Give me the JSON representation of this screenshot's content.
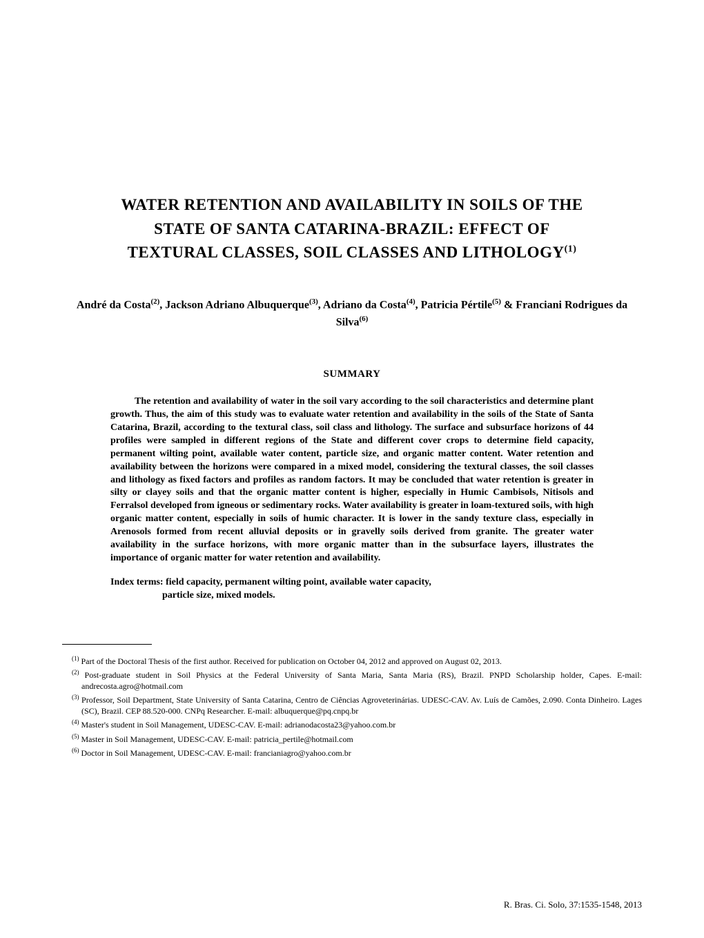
{
  "title": {
    "line1": "WATER RETENTION AND AVAILABILITY IN SOILS OF THE",
    "line2": "STATE OF SANTA CATARINA-BRAZIL: EFFECT OF",
    "line3": "TEXTURAL CLASSES, SOIL CLASSES AND LITHOLOGY",
    "sup": "(1)"
  },
  "authors": {
    "text1": "André da Costa",
    "sup1": "(2)",
    "text2": ", Jackson Adriano Albuquerque",
    "sup2": "(3)",
    "text3": ", Adriano da Costa",
    "sup3": "(4)",
    "text4": ", Patricia Pértile",
    "sup4": "(5)",
    "text5": " & Franciani Rodrigues da Silva",
    "sup5": "(6)"
  },
  "summary_heading": "SUMMARY",
  "abstract": "The retention and availability of water in the soil vary according to the soil characteristics and determine plant growth. Thus, the aim of this study was to evaluate water retention and availability in the soils of the State of Santa Catarina, Brazil, according to the textural class, soil class and lithology. The surface and subsurface horizons of 44 profiles were sampled in different regions of the State and different cover crops to determine field capacity, permanent wilting point, available water content, particle size, and organic matter content. Water retention and availability between the horizons were compared in a mixed model, considering the textural classes, the soil classes and lithology as fixed factors and profiles as random factors. It may be concluded that water retention is greater in silty or clayey soils and that the organic matter content is higher, especially in Humic Cambisols, Nitisols and Ferralsol developed from igneous or sedimentary rocks. Water availability is greater in loam-textured soils, with high organic matter content, especially in soils of humic character. It is lower in the sandy texture class, especially in Arenosols formed from recent alluvial deposits or in gravelly soils derived from granite. The greater water availability in the surface horizons, with more organic matter than in the subsurface layers, illustrates the importance of organic matter for water retention and availability.",
  "index_terms": {
    "label": "Index terms: ",
    "line1": "field capacity, permanent wilting point, available water capacity,",
    "line2": "particle size, mixed models."
  },
  "footnotes": [
    {
      "sup": "(1)",
      "text": " Part of the Doctoral Thesis of the first author. Received for publication on October 04, 2012 and approved on August 02, 2013."
    },
    {
      "sup": "(2)",
      "text": " Post-graduate student in Soil Physics at the Federal University of Santa Maria, Santa Maria (RS), Brazil. PNPD Scholarship holder, Capes. E-mail: andrecosta.agro@hotmail.com"
    },
    {
      "sup": "(3)",
      "text": " Professor, Soil Department, State University of Santa Catarina, Centro de Ciências Agroveterinárias. UDESC-CAV. Av. Luís de Camões, 2.090. Conta Dinheiro. Lages (SC), Brazil. CEP 88.520-000. CNPq Researcher. E-mail: albuquerque@pq.cnpq.br"
    },
    {
      "sup": "(4)",
      "text": " Master's student in Soil Management, UDESC-CAV. E-mail: adrianodacosta23@yahoo.com.br"
    },
    {
      "sup": "(5)",
      "text": " Master in Soil Management, UDESC-CAV. E-mail: patricia_pertile@hotmail.com"
    },
    {
      "sup": "(6)",
      "text": " Doctor in Soil Management, UDESC-CAV. E-mail: francianiagro@yahoo.com.br"
    }
  ],
  "journal_footer": "R. Bras. Ci. Solo, 37:1535-1548, 2013",
  "colors": {
    "background": "#ffffff",
    "text": "#000000",
    "rule": "#000000"
  }
}
